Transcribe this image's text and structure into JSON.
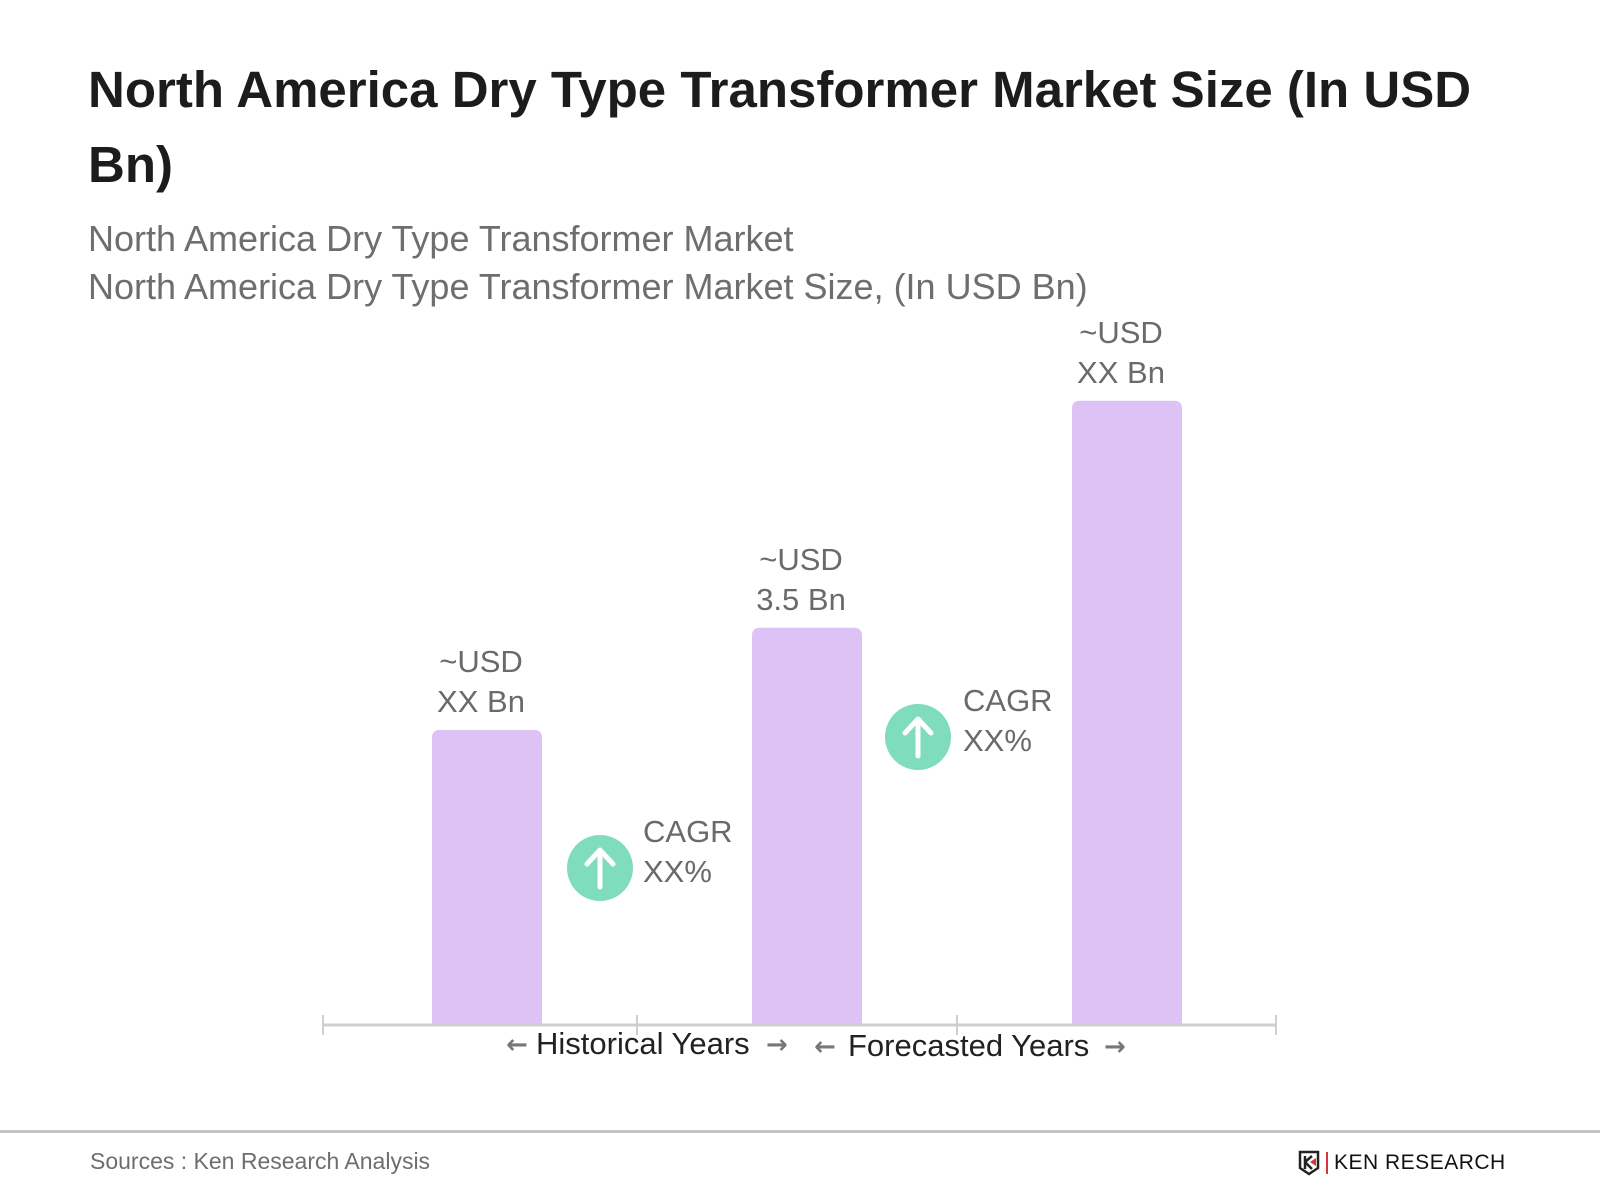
{
  "title": "North America Dry Type Transformer Market  Size (In USD Bn)",
  "subtitle_1": "North America Dry Type Transformer Market",
  "subtitle_2": "North America Dry Type Transformer Market Size, (In USD Bn)",
  "chart_data": {
    "type": "bar",
    "categories": [
      "",
      "",
      ""
    ],
    "values": [
      2.6,
      3.5,
      5.5
    ],
    "data_labels": [
      [
        "~USD",
        "XX Bn"
      ],
      [
        "~USD",
        "3.5 Bn"
      ],
      [
        "~USD",
        "XX Bn"
      ]
    ],
    "bar_color": "#dcc2f5",
    "annotations": [
      {
        "icon": "arrow-up-circle-icon",
        "line1": "CAGR",
        "line2": "XX%",
        "color": "#7fdcbd"
      },
      {
        "icon": "arrow-up-circle-icon",
        "line1": "CAGR",
        "line2": "XX%",
        "color": "#7fdcbd"
      }
    ],
    "period_labels": [
      "Historical Years",
      "Forecasted Years"
    ],
    "grid": false,
    "legend": "none"
  },
  "footer": {
    "source": "Sources : Ken Research Analysis",
    "logo": "KEN RESEARCH"
  }
}
